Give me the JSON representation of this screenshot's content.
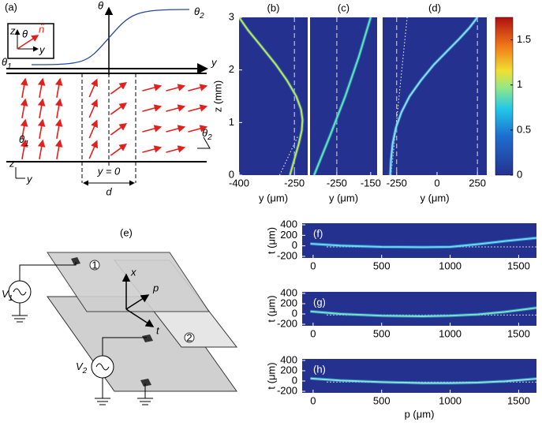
{
  "figure_a": {
    "label": "(a)",
    "theta_axis": "θ",
    "y_axis": "y",
    "theta_high": {
      "base": "θ",
      "sub": "2"
    },
    "theta_low": {
      "base": "θ",
      "sub": "1"
    },
    "inset_z": "z",
    "inset_y": "y",
    "inset_theta": "θ",
    "inset_n": "n̂",
    "field_theta1": {
      "base": "θ",
      "sub": "1"
    },
    "field_theta2": {
      "base": "θ",
      "sub": "2"
    },
    "axes_z": "z",
    "axes_y": "y",
    "origin": "y = 0",
    "width": "d"
  },
  "figure_e": {
    "label": "(e)",
    "plate1": "1",
    "plate2": "2",
    "source1": {
      "base": "V",
      "sub": "1"
    },
    "source2": {
      "base": "V",
      "sub": "2"
    },
    "axis_x": "x",
    "axis_p": "p",
    "axis_t": "t"
  },
  "chart_data": [
    {
      "type": "heatmap",
      "label": "(b)",
      "xlabel": "y (μm)",
      "ylabel": "z (mm)",
      "xlim": [
        -400,
        -214
      ],
      "ylim": [
        0,
        3
      ],
      "xticks": [
        -400,
        -250
      ],
      "yticks": [
        0,
        1,
        2,
        3
      ],
      "guides": [
        -250
      ],
      "series": [
        {
          "color": "#cfe43c",
          "x": [
            -262,
            -250,
            -238,
            -230,
            -228,
            -232,
            -245,
            -270,
            -300,
            -340,
            -375,
            -400
          ],
          "y": [
            0,
            0.3,
            0.6,
            0.85,
            1.05,
            1.25,
            1.5,
            1.8,
            2.1,
            2.45,
            2.75,
            3.0
          ]
        }
      ],
      "tangent": {
        "x": [
          -290,
          -240
        ],
        "y": [
          0,
          0.75
        ]
      }
    },
    {
      "type": "heatmap",
      "label": "(c)",
      "xlabel": "y (μm)",
      "xlim": [
        -329,
        -131
      ],
      "ylim": [
        0,
        3
      ],
      "xticks": [
        -250,
        -150
      ],
      "guides": [
        -250
      ],
      "series": [
        {
          "color": "#62e6a6",
          "x": [
            -317,
            -270,
            -225,
            -185,
            -150
          ],
          "y": [
            0,
            0.75,
            1.5,
            2.25,
            3.0
          ]
        }
      ]
    },
    {
      "type": "heatmap",
      "label": "(d)",
      "xlabel": "y (μm)",
      "xlim": [
        -337,
        308
      ],
      "ylim": [
        0,
        3
      ],
      "xticks": [
        -250,
        0,
        250
      ],
      "guides": [
        -250,
        250
      ],
      "series": [
        {
          "color": "#8fdcf2",
          "x": [
            -290,
            -285,
            -275,
            -255,
            -220,
            -170,
            -100,
            -20,
            60,
            140,
            200,
            250
          ],
          "y": [
            0,
            0.3,
            0.6,
            0.9,
            1.2,
            1.5,
            1.8,
            2.1,
            2.35,
            2.6,
            2.8,
            3.0
          ]
        }
      ],
      "tangent": {
        "x": [
          -285,
          -185
        ],
        "y": [
          0,
          3
        ]
      }
    },
    {
      "type": "colorbar",
      "ylim": [
        0,
        1.75
      ],
      "yticks": [
        0,
        0.5,
        1,
        1.5
      ]
    },
    {
      "type": "heatmap",
      "label": "(f)",
      "ylabel": "t (μm)",
      "xlim": [
        -80,
        1630
      ],
      "ylim": [
        -230,
        430
      ],
      "xticks": [
        0,
        500,
        1000,
        1500
      ],
      "yticks": [
        -200,
        0,
        200,
        400
      ],
      "series": [
        {
          "color": "#6fd8f0",
          "x": [
            -20,
            200,
            500,
            800,
            1000,
            1200,
            1400,
            1630
          ],
          "y": [
            40,
            5,
            -20,
            -25,
            -20,
            30,
            90,
            150
          ]
        }
      ],
      "reference": {
        "x": [
          100,
          1630
        ],
        "y": [
          -20,
          -20
        ]
      }
    },
    {
      "type": "heatmap",
      "label": "(g)",
      "ylabel": "t (μm)",
      "xlim": [
        -80,
        1630
      ],
      "ylim": [
        -230,
        430
      ],
      "xticks": [
        0,
        500,
        1000,
        1500
      ],
      "yticks": [
        -200,
        0,
        200,
        400
      ],
      "series": [
        {
          "color": "#7fe0c0",
          "x": [
            -20,
            200,
            500,
            800,
            1000,
            1200,
            1400,
            1630
          ],
          "y": [
            50,
            0,
            -35,
            -45,
            -35,
            -10,
            40,
            120
          ]
        }
      ],
      "reference": {
        "x": [
          100,
          1630
        ],
        "y": [
          -20,
          -20
        ]
      }
    },
    {
      "type": "heatmap",
      "label": "(h)",
      "ylabel": "t (μm)",
      "xlabel": "p (μm)",
      "xlim": [
        -80,
        1630
      ],
      "ylim": [
        -230,
        430
      ],
      "xticks": [
        0,
        500,
        1000,
        1500
      ],
      "yticks": [
        -200,
        0,
        200,
        400
      ],
      "series": [
        {
          "color": "#8fe0d0",
          "x": [
            -20,
            200,
            500,
            800,
            1000,
            1200,
            1400,
            1630
          ],
          "y": [
            50,
            10,
            -20,
            -40,
            -40,
            -30,
            -5,
            45
          ]
        }
      ],
      "reference": {
        "x": [
          100,
          1630
        ],
        "y": [
          -20,
          -20
        ]
      }
    }
  ]
}
